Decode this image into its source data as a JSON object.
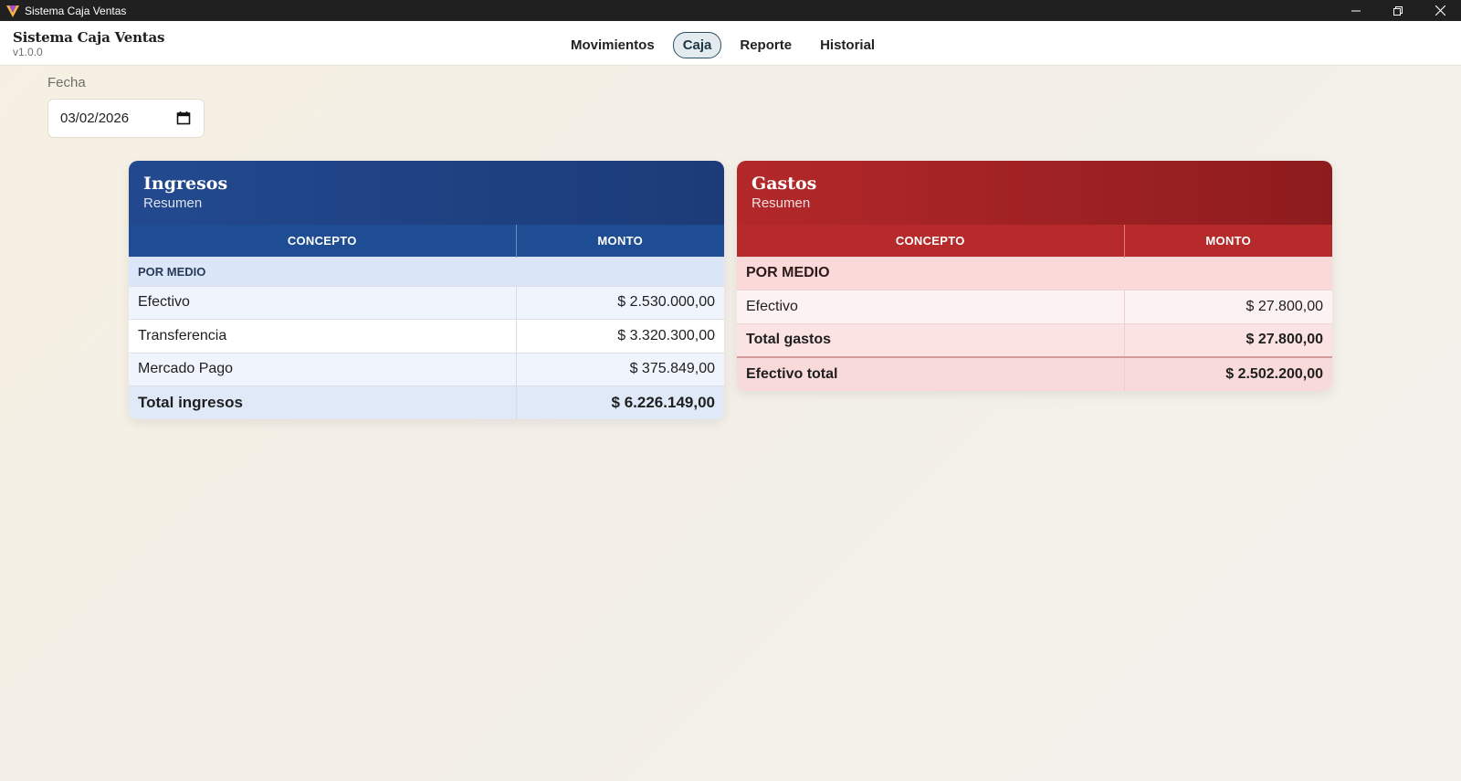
{
  "window": {
    "title": "Sistema Caja Ventas",
    "icon": "v-logo-icon"
  },
  "header": {
    "brand_name": "Sistema Caja Ventas",
    "version": "v1.0.0",
    "nav": [
      {
        "label": "Movimientos",
        "active": false
      },
      {
        "label": "Caja",
        "active": true
      },
      {
        "label": "Reporte",
        "active": false
      },
      {
        "label": "Historial",
        "active": false
      }
    ]
  },
  "filters": {
    "fecha_label": "Fecha",
    "fecha_value": "03/02/2026"
  },
  "ingresos": {
    "title": "Ingresos",
    "subtitle": "Resumen",
    "col_concepto": "CONCEPTO",
    "col_monto": "MONTO",
    "section": "POR MEDIO",
    "rows": [
      {
        "concepto": "Efectivo",
        "monto": "$ 2.530.000,00"
      },
      {
        "concepto": "Transferencia",
        "monto": "$ 3.320.300,00"
      },
      {
        "concepto": "Mercado Pago",
        "monto": "$ 375.849,00"
      }
    ],
    "total_label": "Total ingresos",
    "total_value": "$ 6.226.149,00",
    "color": "#1f4d94"
  },
  "gastos": {
    "title": "Gastos",
    "subtitle": "Resumen",
    "col_concepto": "CONCEPTO",
    "col_monto": "MONTO",
    "section": "POR MEDIO",
    "rows": [
      {
        "concepto": "Efectivo",
        "monto": "$ 27.800,00"
      }
    ],
    "total_label": "Total gastos",
    "total_value": "$ 27.800,00",
    "grand_label": "Efectivo total",
    "grand_value": "$ 2.502.200,00",
    "color": "#b62a2c"
  }
}
